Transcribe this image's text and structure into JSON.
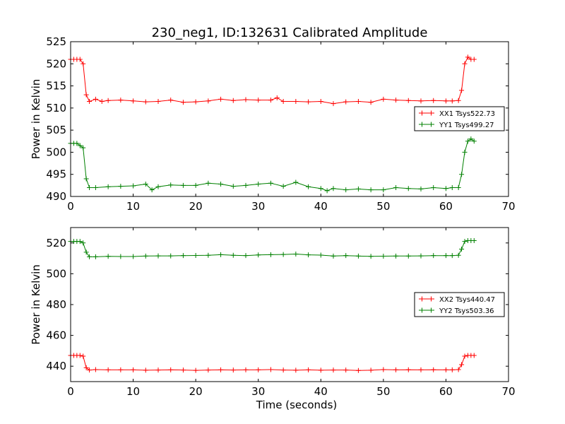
{
  "figure": {
    "title": "230_neg1, ID:132631 Calibrated Amplitude"
  },
  "chart_data": [
    {
      "type": "line",
      "title": "230_neg1, ID:132631 Calibrated Amplitude",
      "xlabel": "",
      "ylabel": "Power in Kelvin",
      "xlim": [
        0,
        70
      ],
      "ylim": [
        490,
        525
      ],
      "xticks": [
        0,
        10,
        20,
        30,
        40,
        50,
        60,
        70
      ],
      "yticks": [
        490,
        495,
        500,
        505,
        510,
        515,
        520,
        525
      ],
      "grid": false,
      "legend": "center-right",
      "series": [
        {
          "name": "XX1 Tsys522.73",
          "color": "#ff0000",
          "x": [
            0,
            0.5,
            1,
            1.5,
            2,
            2.5,
            3,
            4,
            5,
            6,
            8,
            10,
            12,
            14,
            16,
            18,
            20,
            22,
            24,
            26,
            28,
            30,
            32,
            33,
            34,
            36,
            38,
            40,
            42,
            44,
            46,
            48,
            50,
            52,
            54,
            56,
            58,
            60,
            61,
            62,
            62.5,
            63,
            63.5,
            64,
            64.5
          ],
          "y": [
            521,
            521,
            521,
            521,
            520,
            513,
            511.5,
            512,
            511.5,
            511.7,
            511.8,
            511.6,
            511.4,
            511.5,
            511.8,
            511.3,
            511.4,
            511.6,
            512,
            511.7,
            511.9,
            511.8,
            511.8,
            512.3,
            511.5,
            511.5,
            511.4,
            511.5,
            511,
            511.4,
            511.5,
            511.3,
            512,
            511.8,
            511.7,
            511.6,
            511.7,
            511.6,
            511.6,
            511.7,
            514,
            520,
            521.5,
            521,
            521
          ]
        },
        {
          "name": "YY1 Tsys499.27",
          "color": "#008000",
          "x": [
            0,
            0.5,
            1,
            1.5,
            2,
            2.5,
            3,
            4,
            6,
            8,
            10,
            12,
            13,
            14,
            16,
            18,
            20,
            22,
            24,
            26,
            28,
            30,
            32,
            34,
            36,
            38,
            40,
            41,
            42,
            44,
            46,
            48,
            50,
            52,
            54,
            56,
            58,
            60,
            61,
            62,
            62.5,
            63,
            63.5,
            64,
            64.5
          ],
          "y": [
            502,
            502,
            502,
            501.5,
            501,
            494,
            492,
            492,
            492.2,
            492.3,
            492.4,
            492.8,
            491.5,
            492.2,
            492.6,
            492.5,
            492.5,
            493,
            492.8,
            492.3,
            492.5,
            492.8,
            493,
            492.3,
            493.2,
            492.2,
            491.8,
            491.3,
            491.8,
            491.5,
            491.7,
            491.5,
            491.5,
            492,
            491.8,
            491.7,
            492,
            491.8,
            492,
            492,
            495,
            500,
            502.5,
            503,
            502.5
          ]
        }
      ]
    },
    {
      "type": "line",
      "title": "",
      "xlabel": "Time (seconds)",
      "ylabel": "Power in Kelvin",
      "xlim": [
        0,
        70
      ],
      "ylim": [
        430,
        530
      ],
      "xticks": [
        0,
        10,
        20,
        30,
        40,
        50,
        60,
        70
      ],
      "yticks": [
        440,
        460,
        480,
        500,
        520
      ],
      "grid": false,
      "legend": "center-right",
      "series": [
        {
          "name": "XX2 Tsys440.47",
          "color": "#ff0000",
          "x": [
            0,
            0.5,
            1,
            1.5,
            2,
            2.5,
            3,
            4,
            6,
            8,
            10,
            12,
            14,
            16,
            18,
            20,
            22,
            24,
            26,
            28,
            30,
            32,
            34,
            36,
            38,
            40,
            42,
            44,
            46,
            48,
            50,
            52,
            54,
            56,
            58,
            60,
            61,
            62,
            62.5,
            63,
            63.5,
            64,
            64.5
          ],
          "y": [
            447,
            447,
            447,
            447,
            446.5,
            439,
            437.5,
            437.8,
            437.6,
            437.6,
            437.6,
            437.4,
            437.5,
            437.6,
            437.5,
            437.3,
            437.5,
            437.6,
            437.5,
            437.6,
            437.6,
            437.8,
            437.5,
            437.4,
            437.6,
            437.4,
            437.5,
            437.5,
            437.2,
            437.4,
            437.8,
            437.6,
            437.7,
            437.6,
            437.7,
            437.6,
            437.6,
            437.8,
            441,
            446.5,
            447,
            447,
            447
          ]
        },
        {
          "name": "YY2 Tsys503.36",
          "color": "#008000",
          "x": [
            0,
            0.5,
            1,
            1.5,
            2,
            2.5,
            3,
            4,
            6,
            8,
            10,
            12,
            14,
            16,
            18,
            20,
            22,
            24,
            26,
            28,
            30,
            32,
            34,
            36,
            38,
            40,
            42,
            44,
            46,
            48,
            50,
            52,
            54,
            56,
            58,
            60,
            61,
            62,
            62.5,
            63,
            63.5,
            64,
            64.5
          ],
          "y": [
            521,
            521,
            521,
            521,
            520,
            514,
            511,
            511,
            511.3,
            511.2,
            511.2,
            511.5,
            511.6,
            511.6,
            511.8,
            511.9,
            512,
            512.4,
            512,
            511.8,
            512.2,
            512.4,
            512.5,
            512.8,
            512.3,
            512.1,
            511.5,
            511.8,
            511.5,
            511.3,
            511.4,
            511.5,
            511.5,
            511.6,
            511.8,
            511.8,
            511.8,
            512,
            516,
            521,
            521.5,
            521.5,
            521.5
          ]
        }
      ]
    }
  ]
}
